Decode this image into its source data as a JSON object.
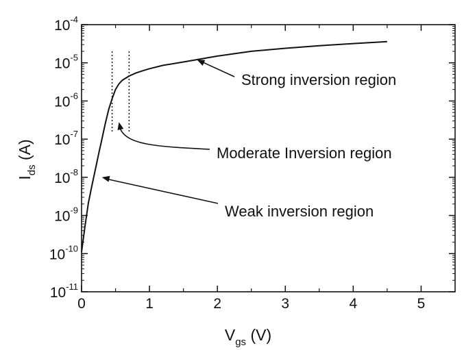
{
  "chart_data": {
    "type": "line",
    "xlabel": {
      "main": "V",
      "sub": "gs",
      "unit": " (V)"
    },
    "ylabel": {
      "main": "I",
      "sub": "ds",
      "unit": " (A)"
    },
    "xlim": [
      0,
      5.5
    ],
    "ylim": [
      1e-11,
      0.0001
    ],
    "yscale": "log",
    "grid": false,
    "x_ticks": [
      0,
      1,
      2,
      3,
      4,
      5
    ],
    "x_tick_labels": [
      "0",
      "1",
      "2",
      "3",
      "4",
      "5"
    ],
    "y_ticks": [
      {
        "value": 1e-11,
        "base": "10",
        "exp": "-11"
      },
      {
        "value": 1e-10,
        "base": "10",
        "exp": "-10"
      },
      {
        "value": 1e-09,
        "base": "10",
        "exp": "-9"
      },
      {
        "value": 1e-08,
        "base": "10",
        "exp": "-8"
      },
      {
        "value": 1e-07,
        "base": "10",
        "exp": "-7"
      },
      {
        "value": 1e-06,
        "base": "10",
        "exp": "-6"
      },
      {
        "value": 1e-05,
        "base": "10",
        "exp": "-5"
      },
      {
        "value": 0.0001,
        "base": "10",
        "exp": "-4"
      }
    ],
    "series": [
      {
        "x": [
          0,
          0.05,
          0.1,
          0.15,
          0.2,
          0.25,
          0.3,
          0.35,
          0.4,
          0.45,
          0.5,
          0.55,
          0.6,
          0.7,
          0.8,
          0.9,
          1.0,
          1.2,
          1.5,
          2.0,
          2.5,
          3.0,
          3.5,
          4.0,
          4.5
        ],
        "y": [
          1.1e-10,
          5.2e-10,
          2.1e-09,
          5.8e-09,
          1.5e-08,
          4e-08,
          1e-07,
          2.6e-07,
          6e-07,
          1.15e-06,
          2e-06,
          2.8e-06,
          3.5e-06,
          4.5e-06,
          5.4e-06,
          6.2e-06,
          7e-06,
          8.6e-06,
          1.05e-05,
          1.5e-05,
          2e-05,
          2.4e-05,
          2.8e-05,
          3.2e-05,
          3.6e-05
        ]
      }
    ],
    "region_markers": [
      0.45,
      0.7
    ],
    "annotations": [
      {
        "text": "Strong inversion region",
        "point": [
          1.7,
          1.2e-05
        ]
      },
      {
        "text": "Moderate Inversion region",
        "point": [
          0.55,
          2.8e-07
        ]
      },
      {
        "text": "Weak inversion region",
        "point": [
          0.3,
          1e-08
        ]
      }
    ]
  }
}
